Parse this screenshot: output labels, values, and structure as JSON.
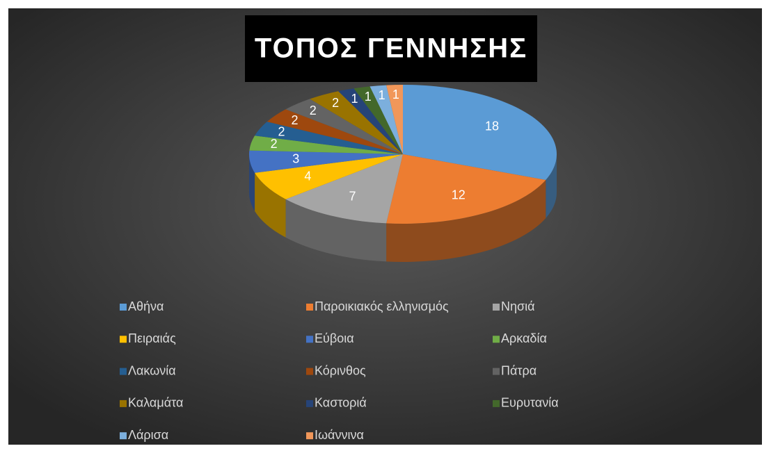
{
  "chart_data": {
    "type": "pie",
    "style": "3d",
    "title": "ΤΟΠΟΣ ΓΕΝΝΗΣΗΣ",
    "categories": [
      "Αθήνα",
      "Παροικιακός ελληνισμός",
      "Νησιά",
      "Πειραιάς",
      "Εύβοια",
      "Αρκαδία",
      "Λακωνία",
      "Κόρινθος",
      "Πάτρα",
      "Καλαμάτα",
      "Καστοριά",
      "Ευρυτανία",
      "Λάρισα",
      "Ιωάννινα"
    ],
    "values": [
      18,
      12,
      7,
      4,
      3,
      2,
      2,
      2,
      2,
      2,
      1,
      1,
      1,
      1
    ],
    "colors": [
      "#5b9bd5",
      "#ed7d31",
      "#a5a5a5",
      "#ffc000",
      "#4472c4",
      "#70ad47",
      "#255e91",
      "#9e480e",
      "#636363",
      "#997300",
      "#264478",
      "#43682b",
      "#7cafdd",
      "#f1975a"
    ],
    "legend": "bottom"
  }
}
